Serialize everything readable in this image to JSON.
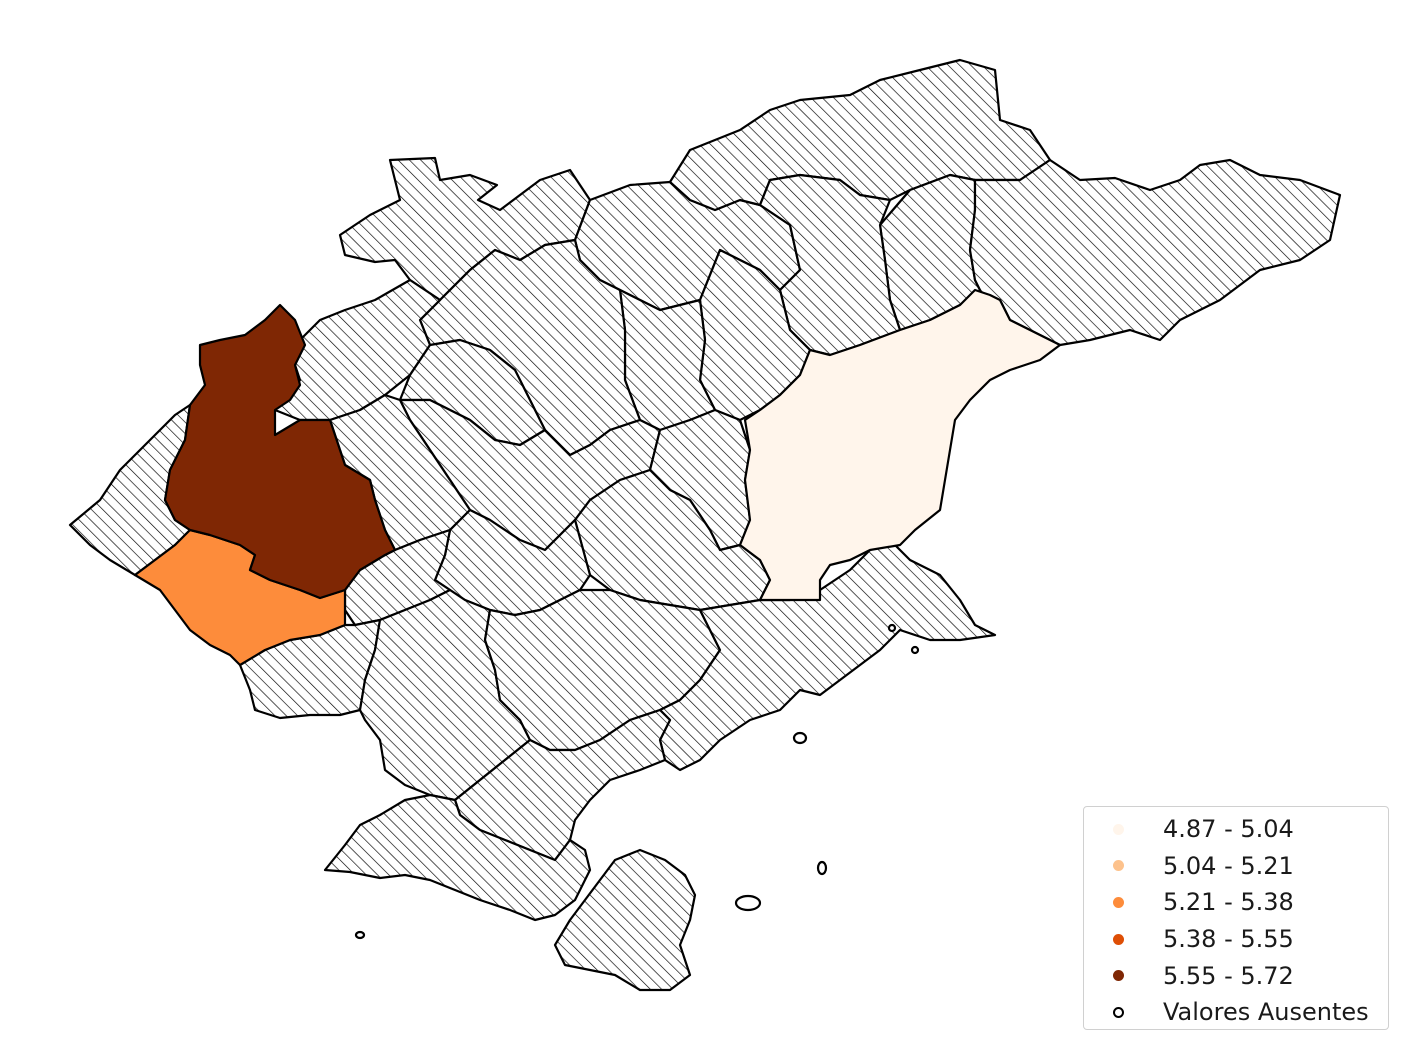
{
  "map": {
    "missing_fill": "hatched",
    "legend": {
      "placement": "bottom-right",
      "items": [
        {
          "label": "4.87 - 5.04",
          "color": "#fff5eb"
        },
        {
          "label": "5.04 - 5.21",
          "color": "#fdc28c"
        },
        {
          "label": "5.21 - 5.38",
          "color": "#fd8c3b"
        },
        {
          "label": "5.38 - 5.55",
          "color": "#de4e05"
        },
        {
          "label": "5.55 - 5.72",
          "color": "#7f2704"
        }
      ],
      "missing": {
        "label": "Valores Ausentes",
        "color": "#ffffff",
        "edge": "#000000"
      }
    }
  }
}
